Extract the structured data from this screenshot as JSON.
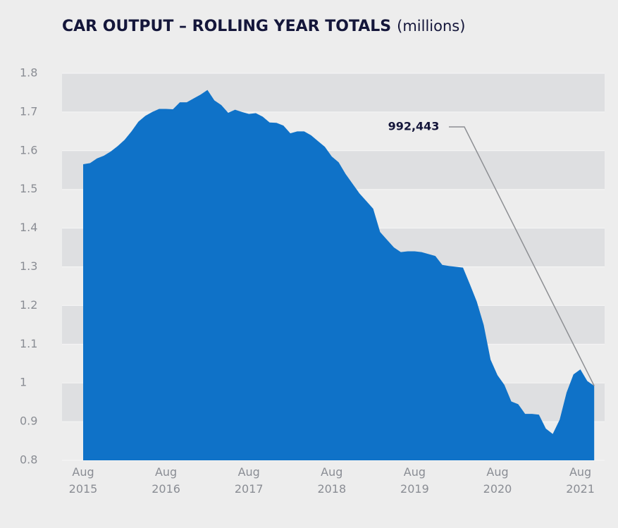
{
  "chart_data": {
    "type": "area",
    "title": "CAR OUTPUT – ROLLING YEAR TOTALS",
    "subtitle": "(millions)",
    "categories": [
      "Aug 2015",
      null,
      null,
      null,
      null,
      null,
      null,
      null,
      null,
      null,
      null,
      null,
      "Aug 2016",
      null,
      null,
      null,
      null,
      null,
      null,
      null,
      null,
      null,
      null,
      null,
      "Aug 2017",
      null,
      null,
      null,
      null,
      null,
      null,
      null,
      null,
      null,
      null,
      null,
      "Aug 2018",
      null,
      null,
      null,
      null,
      null,
      null,
      null,
      null,
      null,
      null,
      null,
      "Aug 2019",
      null,
      null,
      null,
      null,
      null,
      null,
      null,
      null,
      null,
      null,
      null,
      "Aug 2020",
      null,
      null,
      null,
      null,
      null,
      null,
      null,
      null,
      null,
      null,
      null,
      "Aug 2021",
      null,
      null
    ],
    "values": [
      1.565,
      1.568,
      1.58,
      1.587,
      1.598,
      1.612,
      1.628,
      1.65,
      1.675,
      1.69,
      1.7,
      1.708,
      1.708,
      1.707,
      1.725,
      1.725,
      1.735,
      1.745,
      1.757,
      1.73,
      1.718,
      1.698,
      1.706,
      1.7,
      1.695,
      1.697,
      1.688,
      1.673,
      1.672,
      1.665,
      1.645,
      1.65,
      1.65,
      1.64,
      1.625,
      1.61,
      1.585,
      1.57,
      1.54,
      1.515,
      1.49,
      1.47,
      1.45,
      1.39,
      1.37,
      1.35,
      1.338,
      1.34,
      1.34,
      1.338,
      1.333,
      1.328,
      1.305,
      1.302,
      1.3,
      1.298,
      1.255,
      1.21,
      1.15,
      1.06,
      1.02,
      0.995,
      0.952,
      0.945,
      0.92,
      0.92,
      0.918,
      0.882,
      0.868,
      0.905,
      0.975,
      1.022,
      1.035,
      1.005,
      0.992443
    ],
    "value_labels": [
      null,
      null,
      null,
      null,
      null,
      null,
      null,
      null,
      null,
      null,
      null,
      null,
      null,
      null,
      null,
      null,
      null,
      null,
      null,
      null,
      null,
      null,
      null,
      null,
      null,
      null,
      null,
      null,
      null,
      null,
      null,
      null,
      null,
      null,
      null,
      null,
      null,
      null,
      null,
      null,
      null,
      null,
      null,
      null,
      null,
      null,
      null,
      null,
      null,
      null,
      null,
      null,
      null,
      null,
      null,
      null,
      null,
      null,
      null,
      null,
      null,
      null,
      null,
      null,
      null,
      null,
      null,
      null,
      null,
      null,
      null,
      null,
      null,
      null,
      "992,443"
    ],
    "color": "#0f72c8",
    "ylim": [
      0.8,
      1.8
    ],
    "yticks": [
      0.8,
      0.9,
      1,
      1.1,
      1.2,
      1.3,
      1.4,
      1.5,
      1.6,
      1.7,
      1.8
    ],
    "grid": true
  }
}
